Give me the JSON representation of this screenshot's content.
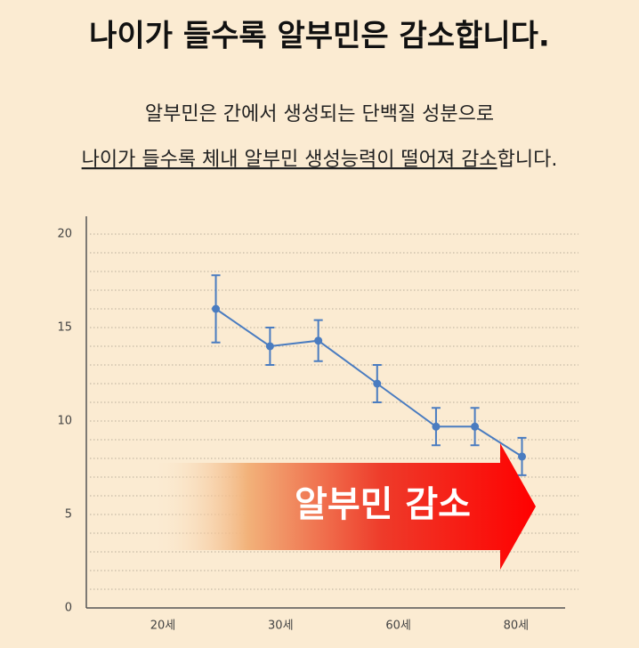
{
  "chart_data": {
    "type": "line",
    "title": "나이가 들수록 알부민은 감소합니다.",
    "subtitle_line1": "알부민은 간에서 생성되는 단백질 성분으로",
    "subtitle_line2_underlined": "나이가 들수록 체내 알부민 생성능력이 떨어져 감소",
    "subtitle_line2_rest": "합니다.",
    "annotation": "알부민 감소",
    "categories": [
      "20세",
      "30세",
      "60세",
      "80세"
    ],
    "series": [
      {
        "x": [
          0.45,
          0.91,
          1.32,
          1.82,
          2.32,
          2.65,
          3.05
        ],
        "values": [
          16,
          14,
          14.3,
          12,
          9.7,
          9.7,
          8.1
        ],
        "errors": [
          1.8,
          1,
          1.1,
          1,
          1,
          1,
          1
        ],
        "color": "#4a7cc0"
      }
    ],
    "ylim": [
      0,
      20
    ],
    "yticks": [
      0,
      5,
      10,
      15,
      20
    ],
    "minor_yticks": [
      1,
      2,
      3,
      4,
      6,
      7,
      8,
      9,
      11,
      12,
      13,
      14,
      16,
      17,
      18,
      19
    ],
    "grid": true
  }
}
